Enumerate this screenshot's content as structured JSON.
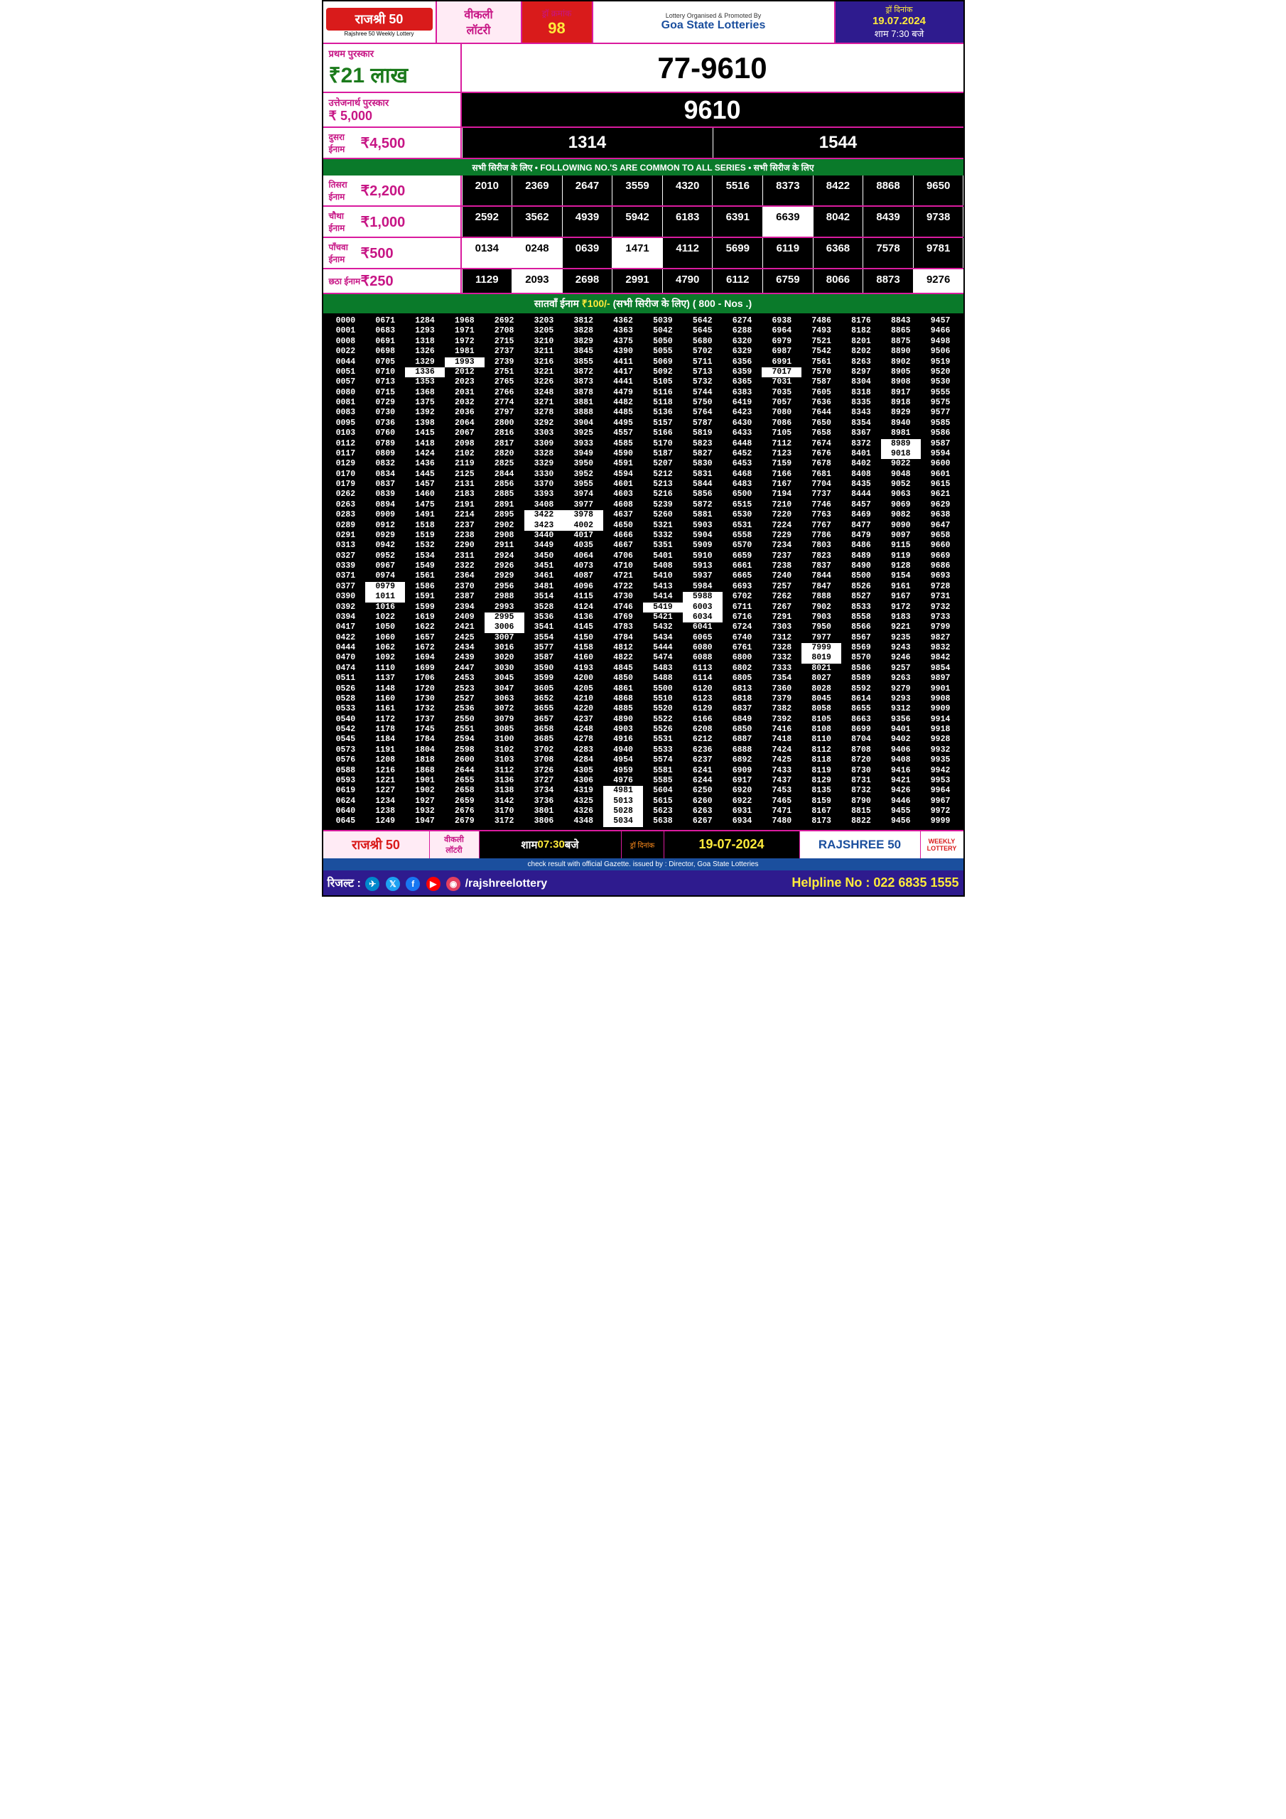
{
  "header": {
    "logo": "राजश्री 50",
    "logoSub": "Rajshree 50 Weekly Lottery",
    "weekly1": "वीकली",
    "weekly2": "लॉटरी",
    "drawLabel": "ड्रॉ क्रमांक",
    "drawNo": "98",
    "goaSub": "Lottery Organised & Promoted By",
    "goa": "Goa State Lotteries",
    "dateLabel": "ड्रॉ दिनांक",
    "date": "19.07.2024",
    "time": "शाम 7:30 बजे"
  },
  "prizes": {
    "first": {
      "label": "प्रथम पुरस्कार",
      "amount": "₹21 लाख",
      "number": "77-9610"
    },
    "cons": {
      "label": "उत्तेजनार्थ पुरस्कार",
      "amount": "₹ 5,000",
      "number": "9610"
    },
    "second": {
      "cat": "दुसरा ईनाम",
      "amount": "₹4,500",
      "n1": "1314",
      "n2": "1544"
    },
    "third": {
      "cat": "तिसरा ईनाम",
      "amount": "₹2,200"
    },
    "fourth": {
      "cat": "चौथा ईनाम",
      "amount": "₹1,000"
    },
    "fifth": {
      "cat": "पाँचवा ईनाम",
      "amount": "₹500"
    },
    "sixth": {
      "cat": "छठा ईनाम",
      "amount": "₹250"
    }
  },
  "commonBar": "सभी सिरीज के लिए • FOLLOWING NO.'S ARE COMMON TO ALL SERIES • सभी सिरीज के लिए",
  "thirdNums": [
    "2010",
    "2369",
    "2647",
    "3559",
    "4320",
    "5516",
    "8373",
    "8422",
    "8868",
    "9650"
  ],
  "thirdWhite": [
    0,
    0,
    0,
    0,
    0,
    0,
    0,
    0,
    0,
    0
  ],
  "fourthNums": [
    "2592",
    "3562",
    "4939",
    "5942",
    "6183",
    "6391",
    "6639",
    "8042",
    "8439",
    "9738"
  ],
  "fourthWhite": [
    0,
    0,
    0,
    0,
    0,
    0,
    1,
    0,
    0,
    0
  ],
  "fifthNums": [
    "0134",
    "0248",
    "0639",
    "1471",
    "4112",
    "5699",
    "6119",
    "6368",
    "7578",
    "9781"
  ],
  "fifthWhite": [
    1,
    1,
    0,
    1,
    0,
    0,
    0,
    0,
    0,
    0
  ],
  "sixthNums": [
    "1129",
    "2093",
    "2698",
    "2991",
    "4790",
    "6112",
    "6759",
    "8066",
    "8873",
    "9276"
  ],
  "sixthWhite": [
    0,
    1,
    0,
    0,
    0,
    0,
    0,
    0,
    0,
    1
  ],
  "seventhBar": {
    "t1": "सातवाँ ईनाम ",
    "amt": "₹100/-",
    "t2": " (सभी सिरीज के लिए)  ",
    "t3": "( 800 - Nos .)"
  },
  "grid": [
    [
      "0000",
      "0671",
      "1284",
      "1968",
      "2692",
      "3203",
      "3812",
      "4362",
      "5039",
      "5642",
      "6274",
      "6938",
      "7486",
      "8176",
      "8843",
      "9457"
    ],
    [
      "0001",
      "0683",
      "1293",
      "1971",
      "2708",
      "3205",
      "3828",
      "4363",
      "5042",
      "5645",
      "6288",
      "6964",
      "7493",
      "8182",
      "8865",
      "9466"
    ],
    [
      "0008",
      "0691",
      "1318",
      "1972",
      "2715",
      "3210",
      "3829",
      "4375",
      "5050",
      "5680",
      "6320",
      "6979",
      "7521",
      "8201",
      "8875",
      "9498"
    ],
    [
      "0022",
      "0698",
      "1326",
      "1981",
      "2737",
      "3211",
      "3845",
      "4390",
      "5055",
      "5702",
      "6329",
      "6987",
      "7542",
      "8202",
      "8890",
      "9506"
    ],
    [
      "0044",
      "0705",
      "1329",
      "1993",
      "2739",
      "3216",
      "3855",
      "4411",
      "5069",
      "5711",
      "6356",
      "6991",
      "7561",
      "8263",
      "8902",
      "9519"
    ],
    [
      "0051",
      "0710",
      "1336",
      "2012",
      "2751",
      "3221",
      "3872",
      "4417",
      "5092",
      "5713",
      "6359",
      "7017",
      "7570",
      "8297",
      "8905",
      "9520"
    ],
    [
      "0057",
      "0713",
      "1353",
      "2023",
      "2765",
      "3226",
      "3873",
      "4441",
      "5105",
      "5732",
      "6365",
      "7031",
      "7587",
      "8304",
      "8908",
      "9530"
    ],
    [
      "0080",
      "0715",
      "1368",
      "2031",
      "2766",
      "3248",
      "3878",
      "4479",
      "5116",
      "5744",
      "6383",
      "7035",
      "7605",
      "8318",
      "8917",
      "9555"
    ],
    [
      "0081",
      "0729",
      "1375",
      "2032",
      "2774",
      "3271",
      "3881",
      "4482",
      "5118",
      "5750",
      "6419",
      "7057",
      "7636",
      "8335",
      "8918",
      "9575"
    ],
    [
      "0083",
      "0730",
      "1392",
      "2036",
      "2797",
      "3278",
      "3888",
      "4485",
      "5136",
      "5764",
      "6423",
      "7080",
      "7644",
      "8343",
      "8929",
      "9577"
    ],
    [
      "0095",
      "0736",
      "1398",
      "2064",
      "2800",
      "3292",
      "3904",
      "4495",
      "5157",
      "5787",
      "6430",
      "7086",
      "7650",
      "8354",
      "8940",
      "9585"
    ],
    [
      "0103",
      "0760",
      "1415",
      "2067",
      "2816",
      "3303",
      "3925",
      "4557",
      "5166",
      "5819",
      "6433",
      "7105",
      "7658",
      "8367",
      "8981",
      "9586"
    ],
    [
      "0112",
      "0789",
      "1418",
      "2098",
      "2817",
      "3309",
      "3933",
      "4585",
      "5170",
      "5823",
      "6448",
      "7112",
      "7674",
      "8372",
      "8989",
      "9587"
    ],
    [
      "0117",
      "0809",
      "1424",
      "2102",
      "2820",
      "3328",
      "3949",
      "4590",
      "5187",
      "5827",
      "6452",
      "7123",
      "7676",
      "8401",
      "9018",
      "9594"
    ],
    [
      "0129",
      "0832",
      "1436",
      "2119",
      "2825",
      "3329",
      "3950",
      "4591",
      "5207",
      "5830",
      "6453",
      "7159",
      "7678",
      "8402",
      "9022",
      "9600"
    ],
    [
      "0170",
      "0834",
      "1445",
      "2125",
      "2844",
      "3330",
      "3952",
      "4594",
      "5212",
      "5831",
      "6468",
      "7166",
      "7681",
      "8408",
      "9048",
      "9601"
    ],
    [
      "0179",
      "0837",
      "1457",
      "2131",
      "2856",
      "3370",
      "3955",
      "4601",
      "5213",
      "5844",
      "6483",
      "7167",
      "7704",
      "8435",
      "9052",
      "9615"
    ],
    [
      "0262",
      "0839",
      "1460",
      "2183",
      "2885",
      "3393",
      "3974",
      "4603",
      "5216",
      "5856",
      "6500",
      "7194",
      "7737",
      "8444",
      "9063",
      "9621"
    ],
    [
      "0263",
      "0894",
      "1475",
      "2191",
      "2891",
      "3408",
      "3977",
      "4608",
      "5239",
      "5872",
      "6515",
      "7210",
      "7746",
      "8457",
      "9069",
      "9629"
    ],
    [
      "0283",
      "0909",
      "1491",
      "2214",
      "2895",
      "3422",
      "3978",
      "4637",
      "5260",
      "5881",
      "6530",
      "7220",
      "7763",
      "8469",
      "9082",
      "9638"
    ],
    [
      "0289",
      "0912",
      "1518",
      "2237",
      "2902",
      "3423",
      "4002",
      "4650",
      "5321",
      "5903",
      "6531",
      "7224",
      "7767",
      "8477",
      "9090",
      "9647"
    ],
    [
      "0291",
      "0929",
      "1519",
      "2238",
      "2908",
      "3440",
      "4017",
      "4666",
      "5332",
      "5904",
      "6558",
      "7229",
      "7786",
      "8479",
      "9097",
      "9658"
    ],
    [
      "0313",
      "0942",
      "1532",
      "2290",
      "2911",
      "3449",
      "4035",
      "4667",
      "5351",
      "5909",
      "6570",
      "7234",
      "7803",
      "8486",
      "9115",
      "9660"
    ],
    [
      "0327",
      "0952",
      "1534",
      "2311",
      "2924",
      "3450",
      "4064",
      "4706",
      "5401",
      "5910",
      "6659",
      "7237",
      "7823",
      "8489",
      "9119",
      "9669"
    ],
    [
      "0339",
      "0967",
      "1549",
      "2322",
      "2926",
      "3451",
      "4073",
      "4710",
      "5408",
      "5913",
      "6661",
      "7238",
      "7837",
      "8490",
      "9128",
      "9686"
    ],
    [
      "0371",
      "0974",
      "1561",
      "2364",
      "2929",
      "3461",
      "4087",
      "4721",
      "5410",
      "5937",
      "6665",
      "7240",
      "7844",
      "8500",
      "9154",
      "9693"
    ],
    [
      "0377",
      "0979",
      "1586",
      "2370",
      "2956",
      "3481",
      "4096",
      "4722",
      "5413",
      "5984",
      "6693",
      "7257",
      "7847",
      "8526",
      "9161",
      "9728"
    ],
    [
      "0390",
      "1011",
      "1591",
      "2387",
      "2988",
      "3514",
      "4115",
      "4730",
      "5414",
      "5988",
      "6702",
      "7262",
      "7888",
      "8527",
      "9167",
      "9731"
    ],
    [
      "0392",
      "1016",
      "1599",
      "2394",
      "2993",
      "3528",
      "4124",
      "4746",
      "5419",
      "6003",
      "6711",
      "7267",
      "7902",
      "8533",
      "9172",
      "9732"
    ],
    [
      "0394",
      "1022",
      "1619",
      "2409",
      "2995",
      "3536",
      "4136",
      "4769",
      "5421",
      "6034",
      "6716",
      "7291",
      "7903",
      "8558",
      "9183",
      "9733"
    ],
    [
      "0417",
      "1050",
      "1622",
      "2421",
      "3006",
      "3541",
      "4145",
      "4783",
      "5432",
      "6041",
      "6724",
      "7303",
      "7950",
      "8566",
      "9221",
      "9799"
    ],
    [
      "0422",
      "1060",
      "1657",
      "2425",
      "3007",
      "3554",
      "4150",
      "4784",
      "5434",
      "6065",
      "6740",
      "7312",
      "7977",
      "8567",
      "9235",
      "9827"
    ],
    [
      "0444",
      "1062",
      "1672",
      "2434",
      "3016",
      "3577",
      "4158",
      "4812",
      "5444",
      "6080",
      "6761",
      "7328",
      "7999",
      "8569",
      "9243",
      "9832"
    ],
    [
      "0470",
      "1092",
      "1694",
      "2439",
      "3020",
      "3587",
      "4160",
      "4822",
      "5474",
      "6088",
      "6800",
      "7332",
      "8019",
      "8570",
      "9246",
      "9842"
    ],
    [
      "0474",
      "1110",
      "1699",
      "2447",
      "3030",
      "3590",
      "4193",
      "4845",
      "5483",
      "6113",
      "6802",
      "7333",
      "8021",
      "8586",
      "9257",
      "9854"
    ],
    [
      "0511",
      "1137",
      "1706",
      "2453",
      "3045",
      "3599",
      "4200",
      "4850",
      "5488",
      "6114",
      "6805",
      "7354",
      "8027",
      "8589",
      "9263",
      "9897"
    ],
    [
      "0526",
      "1148",
      "1720",
      "2523",
      "3047",
      "3605",
      "4205",
      "4861",
      "5500",
      "6120",
      "6813",
      "7360",
      "8028",
      "8592",
      "9279",
      "9901"
    ],
    [
      "0528",
      "1160",
      "1730",
      "2527",
      "3063",
      "3652",
      "4210",
      "4868",
      "5510",
      "6123",
      "6818",
      "7379",
      "8045",
      "8614",
      "9293",
      "9908"
    ],
    [
      "0533",
      "1161",
      "1732",
      "2536",
      "3072",
      "3655",
      "4220",
      "4885",
      "5520",
      "6129",
      "6837",
      "7382",
      "8058",
      "8655",
      "9312",
      "9909"
    ],
    [
      "0540",
      "1172",
      "1737",
      "2550",
      "3079",
      "3657",
      "4237",
      "4890",
      "5522",
      "6166",
      "6849",
      "7392",
      "8105",
      "8663",
      "9356",
      "9914"
    ],
    [
      "0542",
      "1178",
      "1745",
      "2551",
      "3085",
      "3658",
      "4248",
      "4903",
      "5526",
      "6208",
      "6850",
      "7416",
      "8108",
      "8699",
      "9401",
      "9918"
    ],
    [
      "0545",
      "1184",
      "1784",
      "2594",
      "3100",
      "3685",
      "4278",
      "4916",
      "5531",
      "6212",
      "6887",
      "7418",
      "8110",
      "8704",
      "9402",
      "9928"
    ],
    [
      "0573",
      "1191",
      "1804",
      "2598",
      "3102",
      "3702",
      "4283",
      "4940",
      "5533",
      "6236",
      "6888",
      "7424",
      "8112",
      "8708",
      "9406",
      "9932"
    ],
    [
      "0576",
      "1208",
      "1818",
      "2600",
      "3103",
      "3708",
      "4284",
      "4954",
      "5574",
      "6237",
      "6892",
      "7425",
      "8118",
      "8720",
      "9408",
      "9935"
    ],
    [
      "0588",
      "1216",
      "1868",
      "2644",
      "3112",
      "3726",
      "4305",
      "4959",
      "5581",
      "6241",
      "6909",
      "7433",
      "8119",
      "8730",
      "9416",
      "9942"
    ],
    [
      "0593",
      "1221",
      "1901",
      "2655",
      "3136",
      "3727",
      "4306",
      "4976",
      "5585",
      "6244",
      "6917",
      "7437",
      "8129",
      "8731",
      "9421",
      "9953"
    ],
    [
      "0619",
      "1227",
      "1902",
      "2658",
      "3138",
      "3734",
      "4319",
      "4981",
      "5604",
      "6250",
      "6920",
      "7453",
      "8135",
      "8732",
      "9426",
      "9964"
    ],
    [
      "0624",
      "1234",
      "1927",
      "2659",
      "3142",
      "3736",
      "4325",
      "5013",
      "5615",
      "6260",
      "6922",
      "7465",
      "8159",
      "8790",
      "9446",
      "9967"
    ],
    [
      "0640",
      "1238",
      "1932",
      "2676",
      "3170",
      "3801",
      "4326",
      "5028",
      "5623",
      "6263",
      "6931",
      "7471",
      "8167",
      "8815",
      "9455",
      "9972"
    ],
    [
      "0645",
      "1249",
      "1947",
      "2679",
      "3172",
      "3806",
      "4348",
      "5034",
      "5638",
      "6267",
      "6934",
      "7480",
      "8173",
      "8822",
      "9456",
      "9999"
    ]
  ],
  "gridWhite": {
    "4,3": 1,
    "5,2": 1,
    "5,11": 1,
    "12,14": 1,
    "13,14": 1,
    "19,5": 1,
    "19,6": 1,
    "20,5": 1,
    "20,6": 1,
    "26,1": 1,
    "27,1": 1,
    "27,9": 1,
    "28,8": 1,
    "28,9": 1,
    "29,4": 1,
    "29,9": 1,
    "30,4": 1,
    "32,12": 1,
    "33,12": 1,
    "46,7": 1,
    "47,7": 1,
    "48,7": 1,
    "49,7": 1
  },
  "footer": {
    "logo": "राजश्री 50",
    "weekly1": "वीकली",
    "weekly2": "लॉटरी",
    "timeLabel1": "शाम ",
    "time": "07:30",
    "timeLabel2": " बजे",
    "drawLabel": "ड्रॉ दिनांक",
    "date": "19-07-2024",
    "rajshree": "RAJSHREE 50",
    "wl1": "WEEKLY",
    "wl2": "LOTTERY",
    "gazette": "check result with official Gazette. issued by : Director, Goa State Lotteries",
    "result": "रिजल्ट :",
    "handle": "/rajshreelottery",
    "helpline": "Helpline No : 022 6835 1555"
  }
}
